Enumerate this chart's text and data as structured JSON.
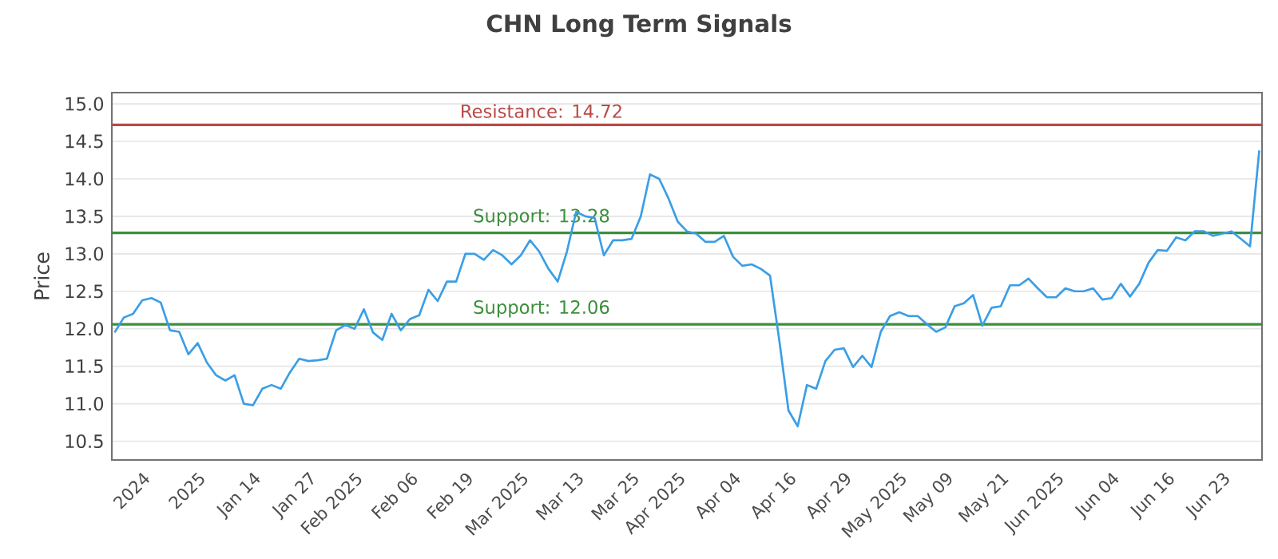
{
  "chart_data": {
    "type": "line",
    "title": "CHN Long Term Signals",
    "ylabel": "Price",
    "categories": [
      null,
      null,
      null,
      "2024",
      null,
      null,
      null,
      null,
      null,
      "2025",
      null,
      null,
      null,
      null,
      null,
      "Jan 14",
      null,
      null,
      null,
      null,
      null,
      "Jan 27",
      null,
      null,
      null,
      null,
      "Feb 2025",
      null,
      null,
      null,
      null,
      null,
      "Feb 06",
      null,
      null,
      null,
      null,
      null,
      "Feb 19",
      null,
      null,
      null,
      null,
      null,
      "Mar 2025",
      null,
      null,
      null,
      null,
      null,
      "Mar 13",
      null,
      null,
      null,
      null,
      null,
      "Mar 25",
      null,
      null,
      null,
      null,
      "Apr 2025",
      null,
      null,
      null,
      null,
      null,
      "Apr 04",
      null,
      null,
      null,
      null,
      null,
      "Apr 16",
      null,
      null,
      null,
      null,
      null,
      "Apr 29",
      null,
      null,
      null,
      null,
      null,
      "May 2025",
      null,
      null,
      null,
      null,
      "May 09",
      null,
      null,
      null,
      null,
      null,
      "May 21",
      null,
      null,
      null,
      null,
      null,
      "Jun 2025",
      null,
      null,
      null,
      null,
      null,
      "Jun 04",
      null,
      null,
      null,
      null,
      null,
      "Jun 16",
      null,
      null,
      null,
      null,
      null,
      "Jun 23",
      null,
      null,
      null,
      null
    ],
    "values": [
      11.95,
      12.15,
      12.2,
      12.38,
      12.41,
      12.35,
      11.98,
      11.96,
      11.66,
      11.81,
      11.55,
      11.38,
      11.31,
      11.38,
      11.0,
      10.98,
      11.2,
      11.25,
      11.2,
      11.42,
      11.6,
      11.57,
      11.58,
      11.6,
      11.98,
      12.05,
      12.0,
      12.26,
      11.95,
      11.85,
      12.2,
      11.98,
      12.13,
      12.18,
      12.52,
      12.37,
      12.63,
      12.63,
      13.0,
      13.0,
      12.92,
      13.05,
      12.98,
      12.86,
      12.98,
      13.18,
      13.03,
      12.8,
      12.63,
      13.03,
      13.56,
      13.5,
      13.48,
      12.98,
      13.18,
      13.18,
      13.2,
      13.5,
      14.06,
      14.0,
      13.74,
      13.43,
      13.3,
      13.27,
      13.16,
      13.16,
      13.24,
      12.96,
      12.84,
      12.86,
      12.8,
      12.71,
      11.85,
      10.91,
      10.7,
      11.25,
      11.2,
      11.57,
      11.72,
      11.74,
      11.49,
      11.64,
      11.49,
      11.96,
      12.17,
      12.22,
      12.17,
      12.17,
      12.06,
      11.96,
      12.02,
      12.3,
      12.34,
      12.45,
      12.04,
      12.28,
      12.3,
      12.58,
      12.58,
      12.67,
      12.54,
      12.42,
      12.42,
      12.54,
      12.5,
      12.5,
      12.54,
      12.39,
      12.41,
      12.6,
      12.43,
      12.6,
      12.88,
      13.05,
      13.04,
      13.22,
      13.18,
      13.3,
      13.3,
      13.24,
      13.27,
      13.3,
      13.2,
      13.1,
      14.38
    ],
    "color": "#3a9ee6",
    "ylim": [
      10.25,
      15.15
    ],
    "yticks": [
      {
        "value": 10.5,
        "label": "10.5"
      },
      {
        "value": 11,
        "label": "11.0"
      },
      {
        "value": 11.5,
        "label": "11.5"
      },
      {
        "value": 12,
        "label": "12.0"
      },
      {
        "value": 12.5,
        "label": "12.5"
      },
      {
        "value": 13,
        "label": "13.0"
      },
      {
        "value": 13.5,
        "label": "13.5"
      },
      {
        "value": 14,
        "label": "14.0"
      },
      {
        "value": 14.5,
        "label": "14.5"
      },
      {
        "value": 15,
        "label": "15.0"
      }
    ],
    "grid": "y",
    "ref_lines": [
      {
        "axis": "y",
        "value": 14.72,
        "label": "Resistance: 14.72",
        "color": "#b94a48"
      },
      {
        "axis": "y",
        "value": 13.28,
        "label": "Support: 13.28",
        "color": "#3c8f3c"
      },
      {
        "axis": "y",
        "value": 12.06,
        "label": "Support: 12.06",
        "color": "#3c8f3c"
      }
    ]
  }
}
